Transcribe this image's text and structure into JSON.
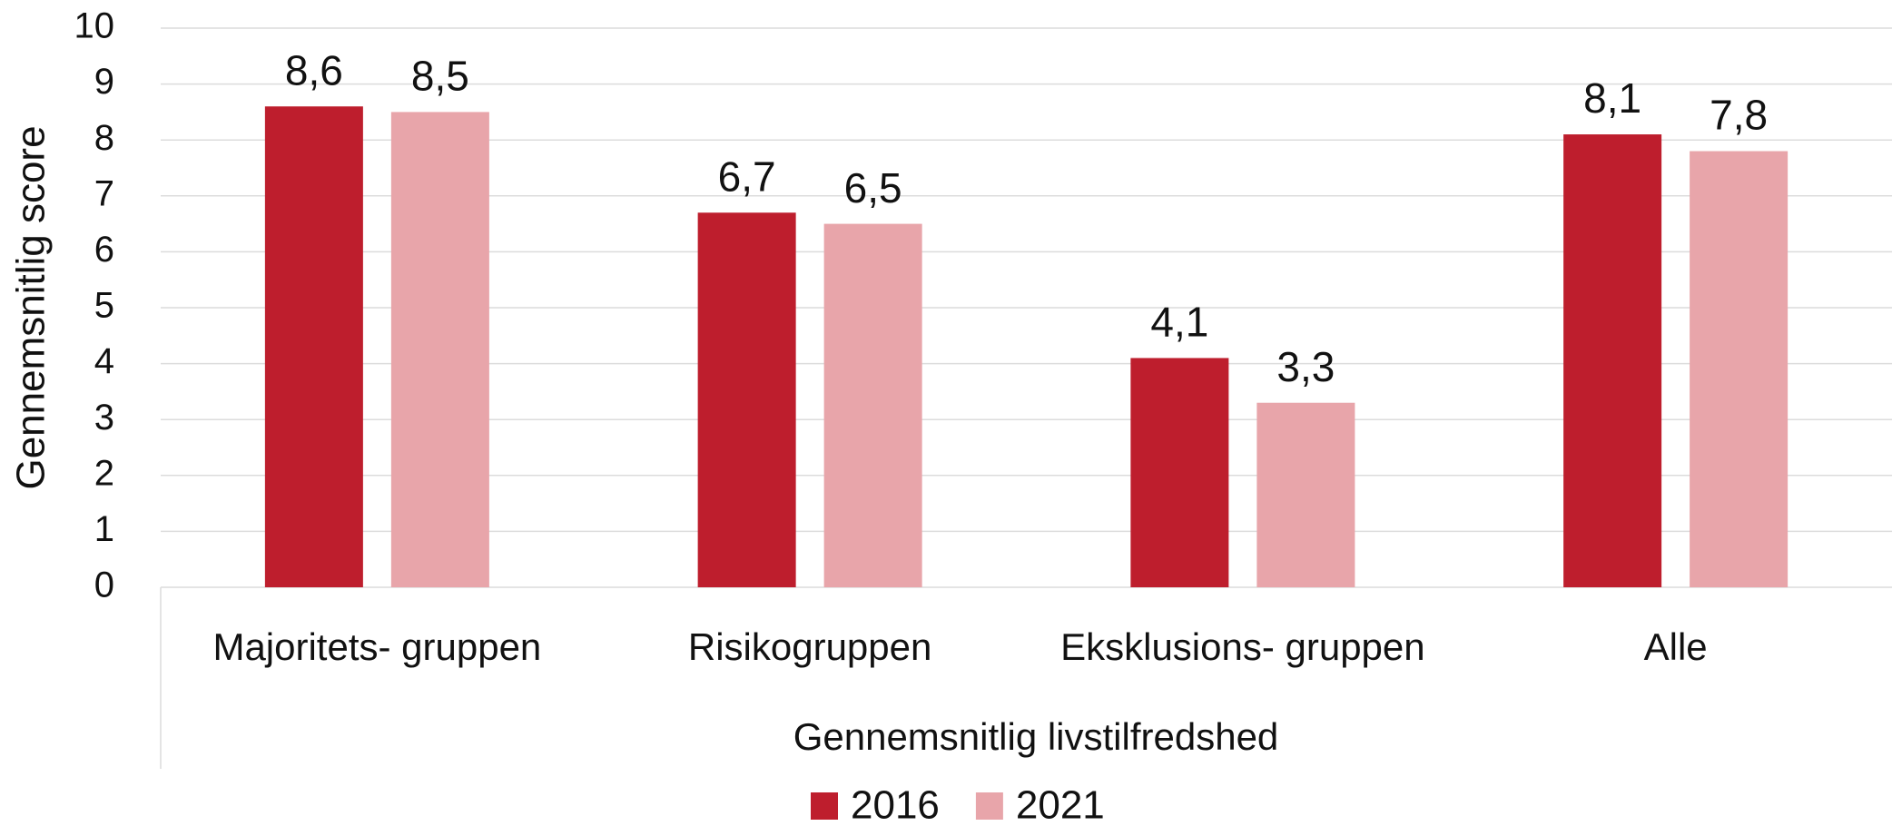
{
  "chart_data": {
    "type": "bar",
    "y_label": "Gennemsnitlig score",
    "x_label": "Gennemsnitlig livstilfredshed",
    "categories": [
      "Majoritets- gruppen",
      "Risikogruppen",
      "Eksklusions- gruppen",
      "Alle"
    ],
    "series": [
      {
        "name": "2016",
        "color": "#be1e2d",
        "values": [
          8.6,
          6.7,
          4.1,
          8.1
        ],
        "value_labels": [
          "8,6",
          "6,7",
          "4,1",
          "8,1"
        ]
      },
      {
        "name": "2021",
        "color": "#e8a5aa",
        "values": [
          8.5,
          6.5,
          3.3,
          7.8
        ],
        "value_labels": [
          "8,5",
          "6,5",
          "3,3",
          "7,8"
        ]
      }
    ],
    "ylim": [
      0,
      10
    ],
    "yticks": [
      0,
      1,
      2,
      3,
      4,
      5,
      6,
      7,
      8,
      9,
      10
    ],
    "grid": true,
    "legend": "bottom"
  }
}
